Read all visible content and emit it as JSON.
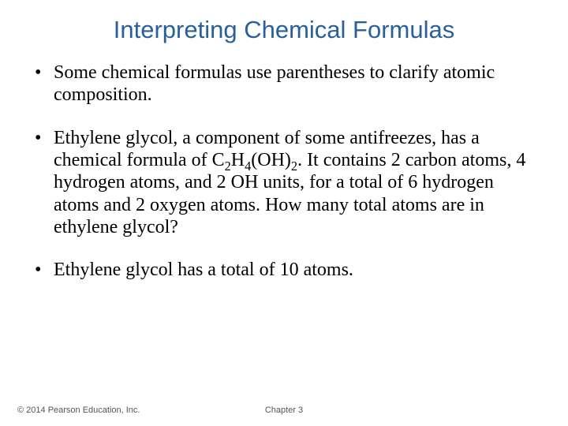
{
  "title": "Interpreting Chemical Formulas",
  "bullets": [
    {
      "segments": [
        {
          "t": "Some chemical formulas use parentheses to clarify atomic composition."
        }
      ]
    },
    {
      "segments": [
        {
          "t": "Ethylene glycol, a component of some antifreezes, has a chemical formula of C"
        },
        {
          "t": "2",
          "sub": true
        },
        {
          "t": "H"
        },
        {
          "t": "4",
          "sub": true
        },
        {
          "t": "(OH)"
        },
        {
          "t": "2",
          "sub": true
        },
        {
          "t": ". It contains 2 carbon atoms, 4 hydrogen atoms, and 2 OH units, for a total of 6 hydrogen atoms and 2 oxygen atoms. How many total atoms are in ethylene glycol?"
        }
      ]
    },
    {
      "segments": [
        {
          "t": "Ethylene glycol has a total of 10 atoms."
        }
      ]
    }
  ],
  "footer": {
    "copyright": "© 2014 Pearson Education, Inc.",
    "chapter": "Chapter 3"
  },
  "colors": {
    "title": "#2a6099",
    "body_text": "#000000",
    "footer_text": "#555555",
    "background": "#ffffff"
  },
  "typography": {
    "title_family": "Arial",
    "title_size_pt": 31,
    "body_family": "Times New Roman",
    "body_size_pt": 24,
    "footer_family": "Arial",
    "footer_size_pt": 11
  }
}
